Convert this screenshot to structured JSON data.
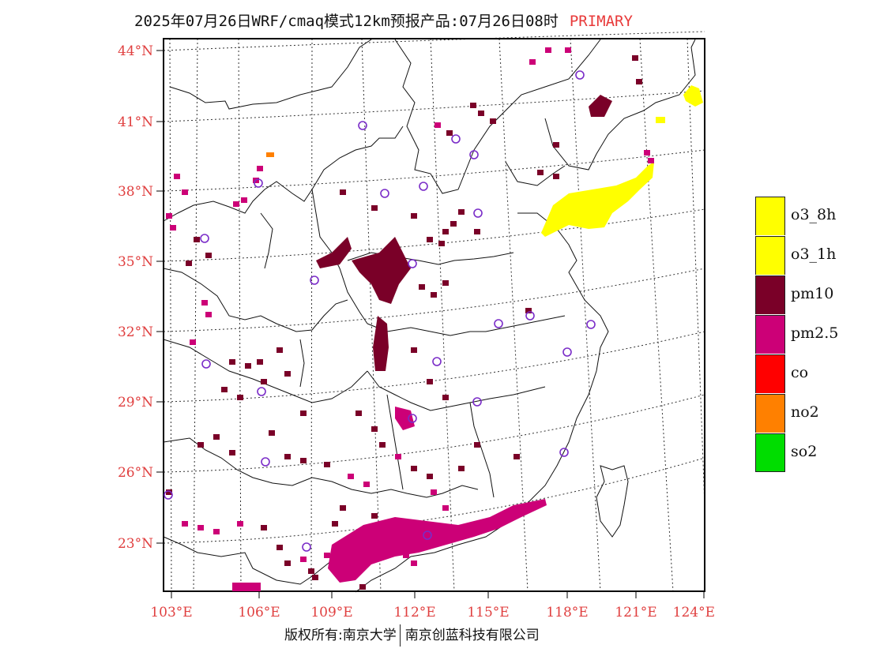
{
  "header": {
    "title": "2025年07月26日WRF/cmaq模式12km预报产品:07月26日08时",
    "tag": "PRIMARY"
  },
  "map": {
    "lat_labels": [
      "44°N",
      "41°N",
      "38°N",
      "35°N",
      "32°N",
      "29°N",
      "26°N",
      "23°N"
    ],
    "lon_labels": [
      "103°E",
      "106°E",
      "109°E",
      "112°E",
      "115°E",
      "118°E",
      "121°E",
      "124°E"
    ],
    "pollutant_colors": {
      "o3_8h": "#ffff00",
      "pm10": "#7a0028",
      "pm2.5": "#cc0077",
      "no2": "#ff8000"
    }
  },
  "legend": {
    "items": [
      {
        "label": "o3_8h",
        "color": "#ffff00"
      },
      {
        "label": "o3_1h",
        "color": "#ffff00"
      },
      {
        "label": "pm10",
        "color": "#7a0028"
      },
      {
        "label": "pm2.5",
        "color": "#cc0077"
      },
      {
        "label": "co",
        "color": "#ff0000"
      },
      {
        "label": "no2",
        "color": "#ff8000"
      },
      {
        "label": "so2",
        "color": "#00dd00"
      }
    ]
  },
  "footer": {
    "left": "版权所有:南京大学",
    "right": "南京创蓝科技有限公司"
  }
}
